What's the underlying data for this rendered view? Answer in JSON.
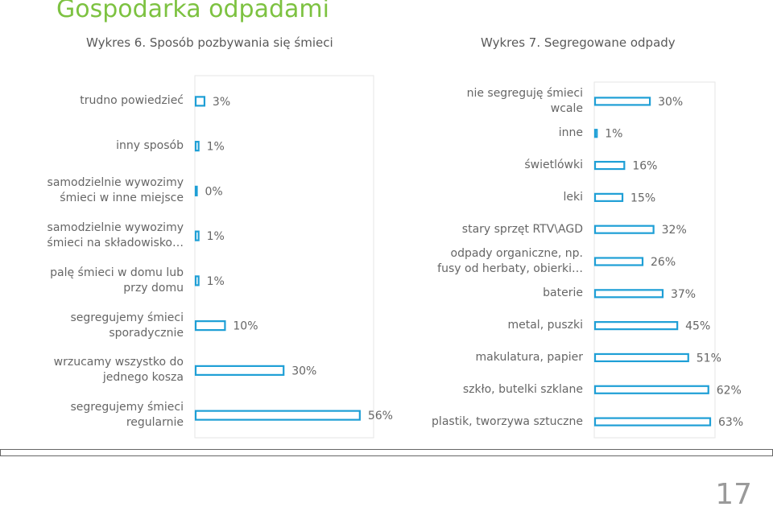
{
  "title": "Gospodarka odpadami",
  "page_number": "17",
  "chart_data": [
    {
      "type": "bar",
      "orientation": "horizontal",
      "title": "Wykres 6. Sposób pozbywania się śmieci",
      "categories": [
        "trudno powiedzieć",
        "inny sposób",
        "samodzielnie wywozimy\nśmieci w inne miejsce",
        "samodzielnie wywozimy\nśmieci na składowisko…",
        "palę śmieci w domu lub\nprzy domu",
        "segregujemy śmieci\nsporadycznie",
        "wrzucamy wszystko do\njednego kosza",
        "segregujemy śmieci\nregularnie"
      ],
      "values": [
        3,
        1,
        0,
        1,
        1,
        10,
        30,
        56
      ],
      "value_labels": [
        "3%",
        "1%",
        "0%",
        "1%",
        "1%",
        "10%",
        "30%",
        "56%"
      ],
      "unit": "%",
      "xlim": [
        0,
        100
      ],
      "grid": false,
      "bar_color": "#1e9fd6"
    },
    {
      "type": "bar",
      "orientation": "horizontal",
      "title": "Wykres 7. Segregowane odpady",
      "categories": [
        "nie segreguję śmieci\nwcale",
        "inne",
        "świetlówki",
        "leki",
        "stary sprzęt RTV\\AGD",
        "odpady organiczne, np.\nfusy od herbaty, obierki…",
        "baterie",
        "metal, puszki",
        "makulatura, papier",
        "szkło, butelki szklane",
        "plastik, tworzywa sztuczne"
      ],
      "values": [
        30,
        1,
        16,
        15,
        32,
        26,
        37,
        45,
        51,
        62,
        63
      ],
      "value_labels": [
        "30%",
        "1%",
        "16%",
        "15%",
        "32%",
        "26%",
        "37%",
        "45%",
        "51%",
        "62%",
        "63%"
      ],
      "unit": "%",
      "xlim": [
        0,
        100
      ],
      "grid": false,
      "bar_color": "#1e9fd6"
    }
  ]
}
